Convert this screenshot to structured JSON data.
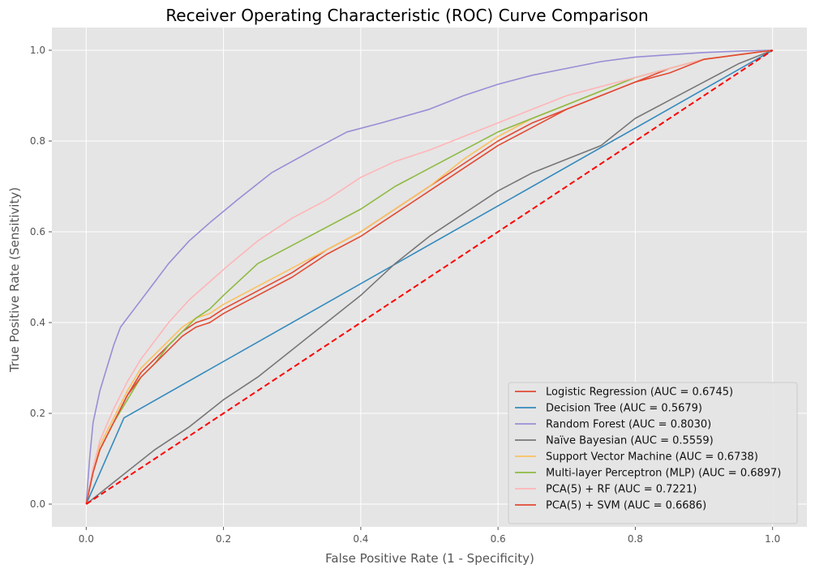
{
  "chart_data": {
    "type": "line",
    "title": "Receiver Operating Characteristic (ROC) Curve Comparison",
    "xlabel": "False Positive Rate (1 - Specificity)",
    "ylabel": "True Positive Rate (Sensitivity)",
    "xlim": [
      -0.05,
      1.05
    ],
    "ylim": [
      -0.05,
      1.05
    ],
    "xticks": [
      0.0,
      0.2,
      0.4,
      0.6,
      0.8,
      1.0
    ],
    "yticks": [
      0.0,
      0.2,
      0.4,
      0.6,
      0.8,
      1.0
    ],
    "xtick_labels": [
      "0.0",
      "0.2",
      "0.4",
      "0.6",
      "0.8",
      "1.0"
    ],
    "ytick_labels": [
      "0.0",
      "0.2",
      "0.4",
      "0.6",
      "0.8",
      "1.0"
    ],
    "grid": true,
    "background": "#e5e5e5",
    "legend_position": "lower-right",
    "series": [
      {
        "name": "Logistic Regression (AUC = 0.6745)",
        "color": "#e24a33",
        "x": [
          0,
          0.01,
          0.02,
          0.04,
          0.06,
          0.08,
          0.1,
          0.12,
          0.14,
          0.16,
          0.18,
          0.2,
          0.25,
          0.3,
          0.35,
          0.4,
          0.45,
          0.5,
          0.55,
          0.6,
          0.65,
          0.7,
          0.75,
          0.8,
          0.85,
          0.9,
          0.95,
          1.0
        ],
        "y": [
          0,
          0.07,
          0.12,
          0.18,
          0.24,
          0.29,
          0.32,
          0.35,
          0.38,
          0.4,
          0.41,
          0.43,
          0.47,
          0.51,
          0.56,
          0.6,
          0.65,
          0.7,
          0.75,
          0.8,
          0.84,
          0.87,
          0.9,
          0.93,
          0.96,
          0.98,
          0.99,
          1.0
        ]
      },
      {
        "name": "Decision Tree (AUC = 0.5679)",
        "color": "#348abd",
        "x": [
          0,
          0.055,
          1.0
        ],
        "y": [
          0,
          0.19,
          1.0
        ]
      },
      {
        "name": "Random Forest (AUC = 0.8030)",
        "color": "#988ed5",
        "x": [
          0,
          0.005,
          0.01,
          0.02,
          0.03,
          0.04,
          0.05,
          0.07,
          0.1,
          0.12,
          0.15,
          0.18,
          0.22,
          0.27,
          0.33,
          0.38,
          0.43,
          0.5,
          0.55,
          0.6,
          0.65,
          0.7,
          0.75,
          0.8,
          0.85,
          0.9,
          0.95,
          1.0
        ],
        "y": [
          0,
          0.1,
          0.18,
          0.25,
          0.3,
          0.35,
          0.39,
          0.43,
          0.49,
          0.53,
          0.58,
          0.62,
          0.67,
          0.73,
          0.78,
          0.82,
          0.84,
          0.87,
          0.9,
          0.925,
          0.945,
          0.96,
          0.975,
          0.985,
          0.99,
          0.995,
          0.998,
          1.0
        ]
      },
      {
        "name": "Naïve Bayesian (AUC = 0.5559)",
        "color": "#777777",
        "x": [
          0,
          0.05,
          0.1,
          0.15,
          0.2,
          0.25,
          0.3,
          0.35,
          0.4,
          0.45,
          0.5,
          0.55,
          0.6,
          0.65,
          0.7,
          0.75,
          0.8,
          0.85,
          0.9,
          0.95,
          1.0
        ],
        "y": [
          0,
          0.06,
          0.12,
          0.17,
          0.23,
          0.28,
          0.34,
          0.4,
          0.46,
          0.53,
          0.59,
          0.64,
          0.69,
          0.73,
          0.76,
          0.79,
          0.85,
          0.89,
          0.93,
          0.97,
          1.0
        ]
      },
      {
        "name": "Support Vector Machine (AUC = 0.6738)",
        "color": "#fbc15e",
        "x": [
          0,
          0.01,
          0.02,
          0.04,
          0.06,
          0.08,
          0.1,
          0.12,
          0.14,
          0.16,
          0.18,
          0.2,
          0.25,
          0.3,
          0.35,
          0.4,
          0.45,
          0.5,
          0.55,
          0.6,
          0.65,
          0.7,
          0.75,
          0.8,
          0.85,
          0.9,
          0.95,
          1.0
        ],
        "y": [
          0,
          0.08,
          0.13,
          0.19,
          0.25,
          0.3,
          0.33,
          0.36,
          0.39,
          0.41,
          0.42,
          0.44,
          0.48,
          0.52,
          0.56,
          0.6,
          0.65,
          0.7,
          0.76,
          0.81,
          0.85,
          0.88,
          0.91,
          0.94,
          0.96,
          0.98,
          0.99,
          1.0
        ]
      },
      {
        "name": "Multi-layer Perceptron (MLP) (AUC = 0.6897)",
        "color": "#8eba42",
        "x": [
          0,
          0.01,
          0.02,
          0.04,
          0.06,
          0.08,
          0.1,
          0.12,
          0.14,
          0.16,
          0.18,
          0.2,
          0.25,
          0.3,
          0.35,
          0.4,
          0.45,
          0.5,
          0.55,
          0.6,
          0.65,
          0.7,
          0.75,
          0.8,
          0.85,
          0.9,
          0.95,
          1.0
        ],
        "y": [
          0,
          0.07,
          0.12,
          0.18,
          0.23,
          0.28,
          0.31,
          0.35,
          0.38,
          0.41,
          0.43,
          0.46,
          0.53,
          0.57,
          0.61,
          0.65,
          0.7,
          0.74,
          0.78,
          0.82,
          0.85,
          0.88,
          0.91,
          0.94,
          0.96,
          0.98,
          0.99,
          1.0
        ]
      },
      {
        "name": "PCA(5) + RF (AUC = 0.7221)",
        "color": "#ffb5b8",
        "x": [
          0,
          0.01,
          0.02,
          0.04,
          0.06,
          0.08,
          0.1,
          0.12,
          0.15,
          0.18,
          0.21,
          0.25,
          0.3,
          0.35,
          0.4,
          0.45,
          0.5,
          0.55,
          0.6,
          0.65,
          0.7,
          0.75,
          0.8,
          0.85,
          0.9,
          0.95,
          1.0
        ],
        "y": [
          0,
          0.08,
          0.14,
          0.21,
          0.27,
          0.32,
          0.36,
          0.4,
          0.45,
          0.49,
          0.53,
          0.58,
          0.63,
          0.67,
          0.72,
          0.755,
          0.78,
          0.81,
          0.84,
          0.87,
          0.9,
          0.92,
          0.94,
          0.96,
          0.98,
          0.99,
          1.0
        ]
      },
      {
        "name": "PCA(5) + SVM (AUC = 0.6686)",
        "color": "#e24a33",
        "x": [
          0,
          0.01,
          0.02,
          0.04,
          0.06,
          0.08,
          0.1,
          0.12,
          0.14,
          0.16,
          0.18,
          0.2,
          0.25,
          0.3,
          0.35,
          0.4,
          0.45,
          0.5,
          0.55,
          0.6,
          0.65,
          0.7,
          0.75,
          0.8,
          0.85,
          0.9,
          0.95,
          1.0
        ],
        "y": [
          0,
          0.07,
          0.12,
          0.18,
          0.24,
          0.28,
          0.31,
          0.34,
          0.37,
          0.39,
          0.4,
          0.42,
          0.46,
          0.5,
          0.55,
          0.59,
          0.64,
          0.69,
          0.74,
          0.79,
          0.83,
          0.87,
          0.9,
          0.93,
          0.95,
          0.98,
          0.99,
          1.0
        ]
      }
    ],
    "reference_line": {
      "x": [
        0,
        1
      ],
      "y": [
        0,
        1
      ],
      "color": "#ff0000",
      "style": "dashed"
    }
  }
}
